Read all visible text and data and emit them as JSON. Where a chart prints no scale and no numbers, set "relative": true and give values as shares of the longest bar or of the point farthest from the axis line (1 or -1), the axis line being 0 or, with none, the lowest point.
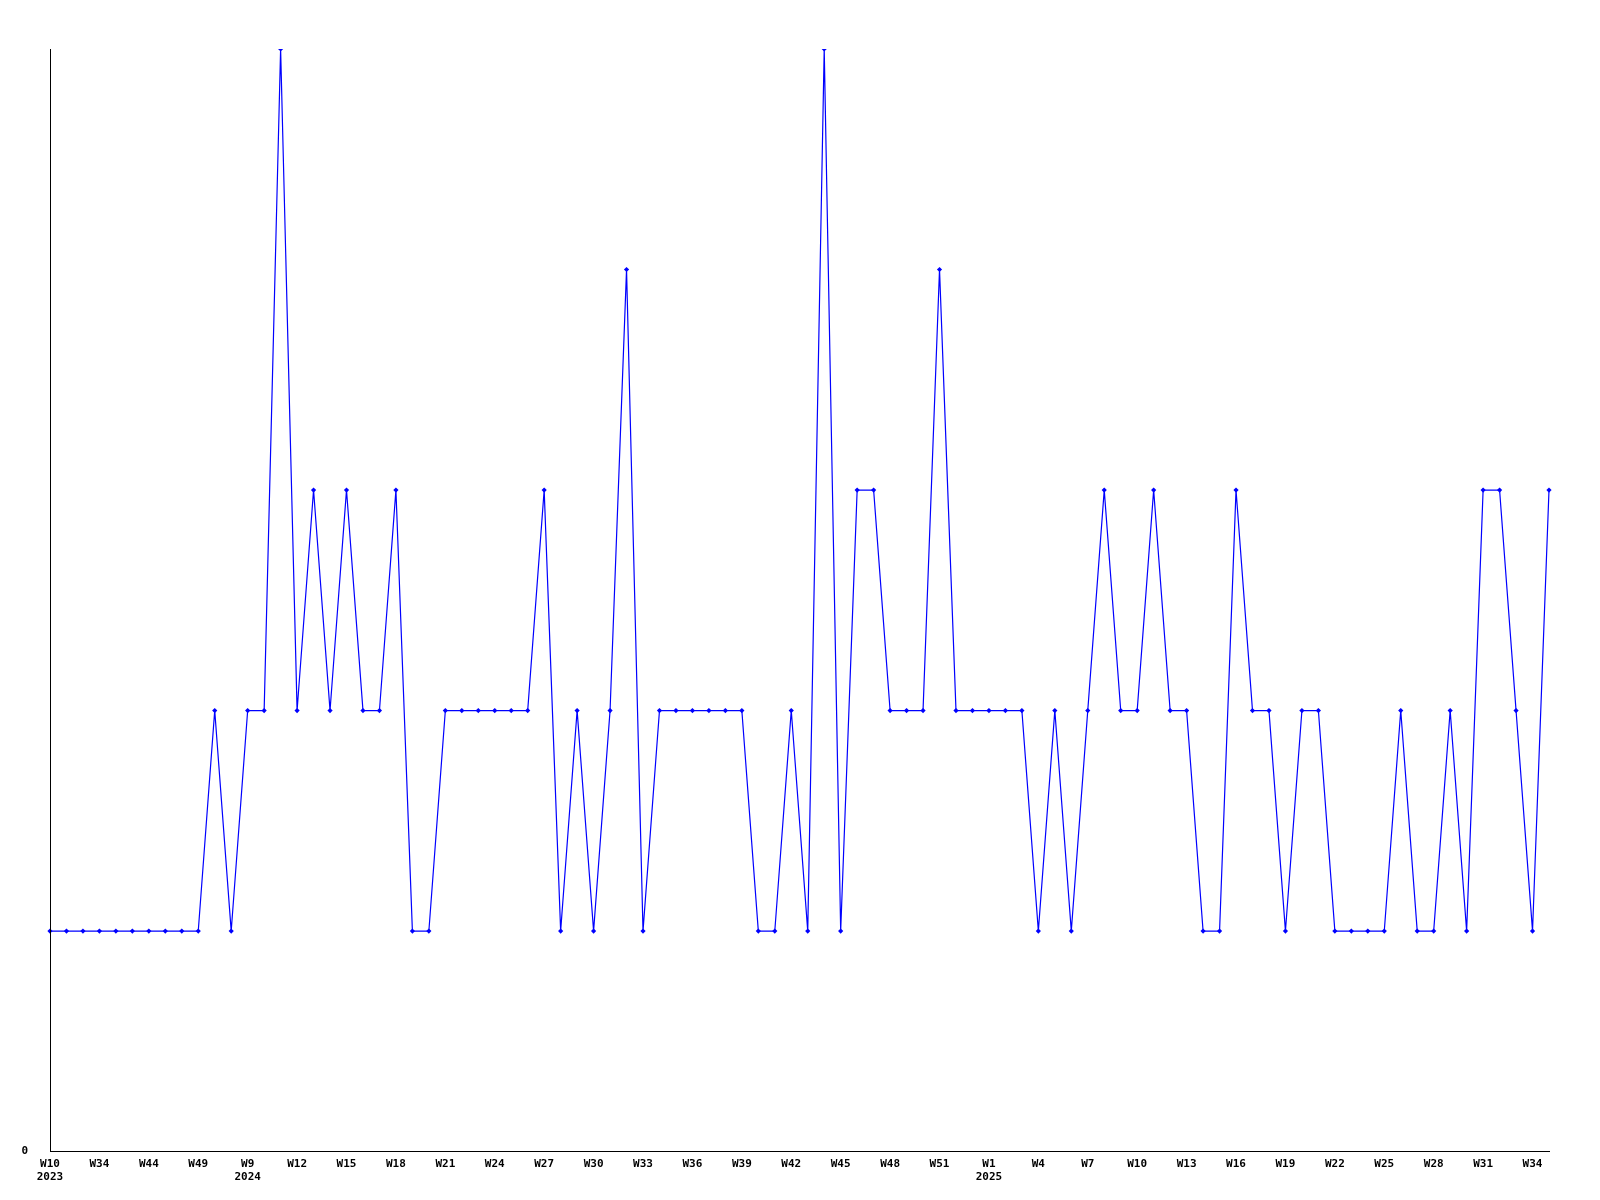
{
  "chart_data": {
    "type": "line",
    "relative": true,
    "color": "#0000ff",
    "marker": "diamond",
    "grid": false,
    "legend": false,
    "annotations": [
      "0"
    ],
    "categories": [
      "W10\n2023",
      null,
      null,
      "W34",
      null,
      null,
      "W44",
      null,
      null,
      "W49",
      null,
      null,
      "W9\n2024",
      null,
      null,
      "W12",
      null,
      null,
      "W15",
      null,
      null,
      "W18",
      null,
      null,
      "W21",
      null,
      null,
      "W24",
      null,
      null,
      "W27",
      null,
      null,
      "W30",
      null,
      null,
      "W33",
      null,
      null,
      "W36",
      null,
      null,
      "W39",
      null,
      null,
      "W42",
      null,
      null,
      "W45",
      null,
      null,
      "W48",
      null,
      null,
      "W51",
      null,
      null,
      "W1\n2025",
      null,
      null,
      "W4",
      null,
      null,
      "W7",
      null,
      null,
      "W10",
      null,
      null,
      "W13",
      null,
      null,
      "W16",
      null,
      null,
      "W19",
      null,
      null,
      "W22",
      null,
      null,
      "W25",
      null,
      null,
      "W28",
      null,
      null,
      "W31",
      null,
      null,
      "W34",
      null
    ],
    "values": [
      0.2,
      0.2,
      0.2,
      0.2,
      0.2,
      0.2,
      0.2,
      0.2,
      0.2,
      0.2,
      0.4,
      0.2,
      0.4,
      0.4,
      1,
      0.4,
      0.6,
      0.4,
      0.6,
      0.4,
      0.4,
      0.6,
      0.2,
      0.2,
      0.4,
      0.4,
      0.4,
      0.4,
      0.4,
      0.4,
      0.6,
      0.2,
      0.4,
      0.2,
      0.4,
      0.8,
      0.2,
      0.4,
      0.4,
      0.4,
      0.4,
      0.4,
      0.4,
      0.2,
      0.2,
      0.4,
      0.2,
      1,
      0.2,
      0.6,
      0.6,
      0.4,
      0.4,
      0.4,
      0.8,
      0.4,
      0.4,
      0.4,
      0.4,
      0.4,
      0.2,
      0.4,
      0.2,
      0.4,
      0.6,
      0.4,
      0.4,
      0.6,
      0.4,
      0.4,
      0.2,
      0.2,
      0.6,
      0.4,
      0.4,
      0.2,
      0.4,
      0.4,
      0.2,
      0.2,
      0.2,
      0.2,
      0.4,
      0.2,
      0.2,
      0.4,
      0.2,
      0.6,
      0.6,
      0.4,
      0.2,
      0.6
    ]
  }
}
